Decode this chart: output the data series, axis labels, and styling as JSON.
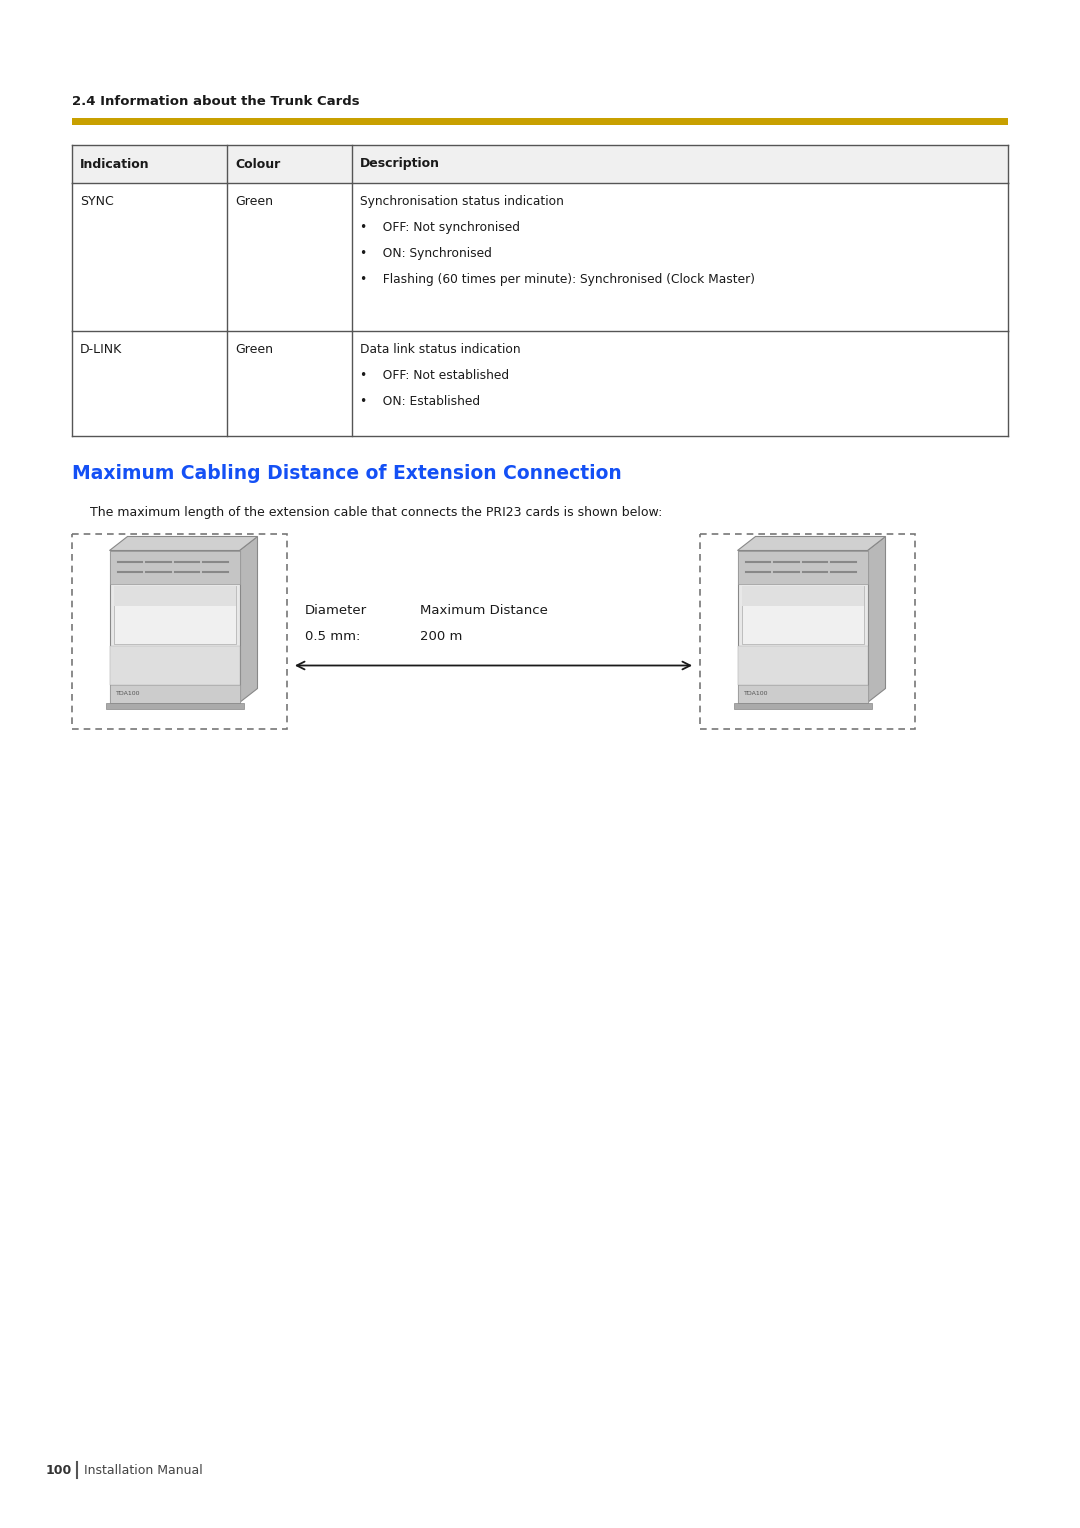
{
  "page_bg": "#ffffff",
  "section_heading": "2.4 Information about the Trunk Cards",
  "section_heading_color": "#1a1a1a",
  "gold_bar_color": "#C8A000",
  "table_headers": [
    "Indication",
    "Colour",
    "Description"
  ],
  "table_rows": [
    {
      "indication": "SYNC",
      "colour": "Green",
      "description_lines": [
        "Synchronisation status indication",
        "•    OFF: Not synchronised",
        "•    ON: Synchronised",
        "•    Flashing (60 times per minute): Synchronised (Clock Master)"
      ]
    },
    {
      "indication": "D-LINK",
      "colour": "Green",
      "description_lines": [
        "Data link status indication",
        "•    OFF: Not established",
        "•    ON: Established"
      ]
    }
  ],
  "section2_title": "Maximum Cabling Distance of Extension Connection",
  "section2_title_color": "#1450F5",
  "section2_subtitle": "The maximum length of the extension cable that connects the PRI23 cards is shown below:",
  "diagram_label1": "Diameter",
  "diagram_label2": "0.5 mm:",
  "diagram_label3": "Maximum Distance",
  "diagram_label4": "200 m",
  "footer_page": "100",
  "footer_text": "Installation Manual"
}
